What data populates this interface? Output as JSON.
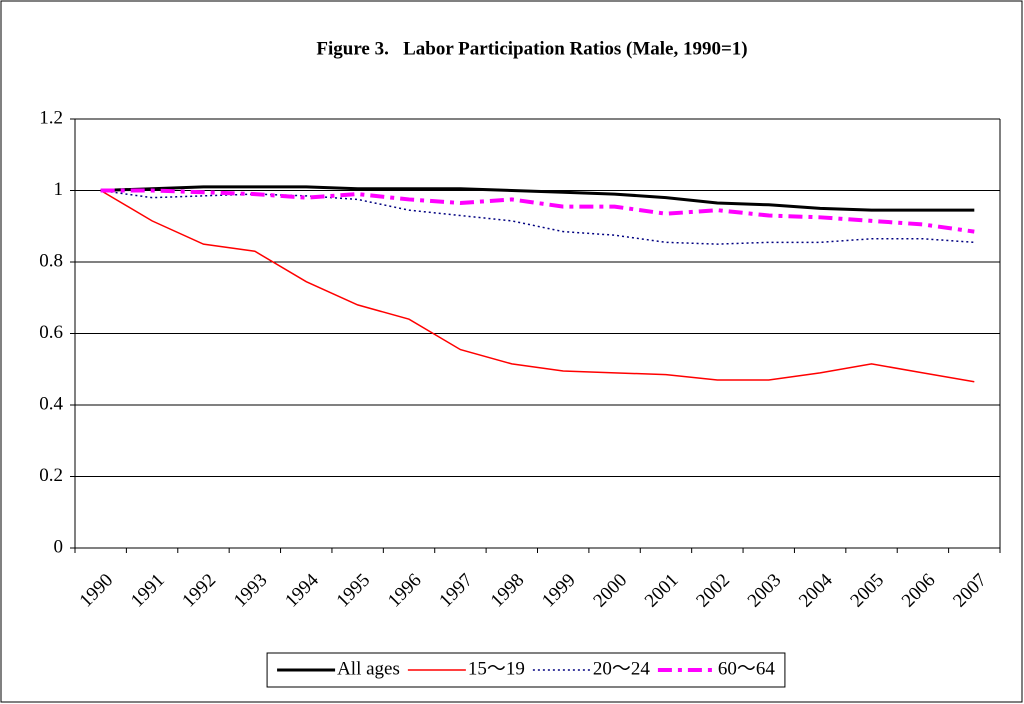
{
  "chart_data": {
    "type": "line",
    "title": "Figure 3.   Labor Participation Ratios (Male, 1990=1)",
    "categories": [
      "1990",
      "1991",
      "1992",
      "1993",
      "1994",
      "1995",
      "1996",
      "1997",
      "1998",
      "1999",
      "2000",
      "2001",
      "2002",
      "2003",
      "2004",
      "2005",
      "2006",
      "2007"
    ],
    "series": [
      {
        "name": "All ages",
        "color": "#000000",
        "values": [
          1,
          1.005,
          1.01,
          1.01,
          1.01,
          1.005,
          1.005,
          1.005,
          1.0,
          0.995,
          0.99,
          0.98,
          0.965,
          0.96,
          0.95,
          0.945,
          0.945,
          0.945
        ]
      },
      {
        "name": "15～19",
        "color": "#ff0000",
        "values": [
          1,
          0.915,
          0.85,
          0.83,
          0.745,
          0.68,
          0.64,
          0.555,
          0.515,
          0.495,
          0.49,
          0.485,
          0.47,
          0.47,
          0.49,
          0.515,
          0.49,
          0.465
        ]
      },
      {
        "name": "20～24",
        "color": "#000080",
        "values": [
          1,
          0.98,
          0.985,
          0.99,
          0.985,
          0.975,
          0.945,
          0.93,
          0.915,
          0.885,
          0.875,
          0.855,
          0.85,
          0.855,
          0.855,
          0.865,
          0.865,
          0.855
        ]
      },
      {
        "name": "60～64",
        "color": "#ff00ff",
        "values": [
          1,
          1.0,
          0.995,
          0.99,
          0.98,
          0.99,
          0.975,
          0.965,
          0.975,
          0.955,
          0.955,
          0.935,
          0.945,
          0.93,
          0.925,
          0.915,
          0.905,
          0.885
        ]
      }
    ],
    "ylim": [
      0,
      1.2
    ],
    "yticks": [
      0,
      0.2,
      0.4,
      0.6,
      0.8,
      1,
      1.2
    ],
    "grid": true,
    "legend": "bottom"
  }
}
